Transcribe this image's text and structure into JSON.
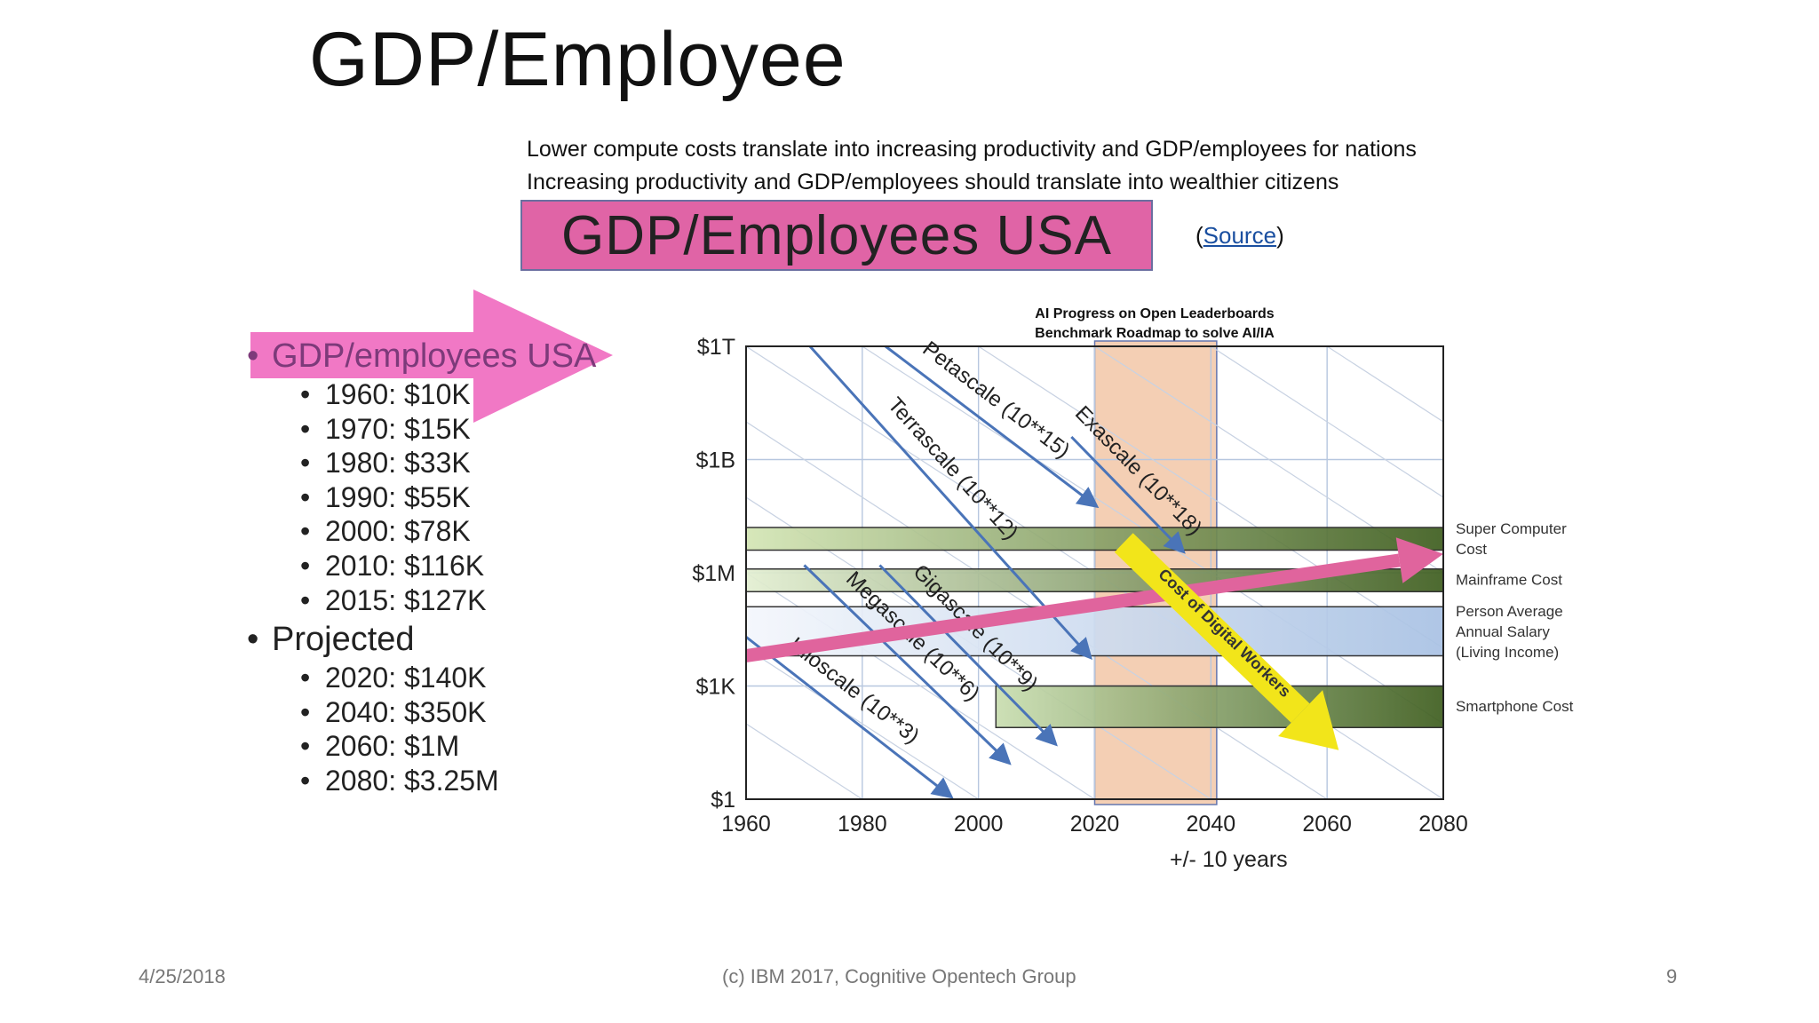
{
  "slide": {
    "title": "GDP/Employee",
    "subtitle_lines": [
      "Lower compute costs translate into increasing productivity and GDP/employees for nations",
      "Increasing productivity and GDP/employees should translate into wealthier citizens"
    ],
    "banner": "GDP/Employees USA",
    "source_open": "(",
    "source_link": "Source",
    "source_close": ")",
    "footer": {
      "date": "4/25/2018",
      "center": "(c) IBM 2017, Cognitive Opentech Group",
      "page": "9"
    }
  },
  "left_list": {
    "heading": "GDP/employees USA",
    "items": [
      "1960: $10K",
      "1970: $15K",
      "1980: $33K",
      "1990: $55K",
      "2000: $78K",
      "2010: $116K",
      "2015: $127K"
    ],
    "projected_heading": "Projected",
    "projected_items": [
      "2020: $140K",
      "2040: $350K",
      "2060:  $1M",
      "2080: $3.25M"
    ]
  },
  "chart_data": {
    "type": "line",
    "title_lines": [
      "AI Progress on Open Leaderboards",
      "Benchmark Roadmap to solve AI/IA"
    ],
    "xlabel": "+/- 10 years",
    "x_ticks": [
      "1960",
      "1980",
      "2000",
      "2020",
      "2040",
      "2060",
      "2080"
    ],
    "y_ticks": [
      "$1",
      "$1K",
      "$1M",
      "$1B",
      "$1T"
    ],
    "xlim": [
      1960,
      2080
    ],
    "ylim_log10": [
      0,
      12
    ],
    "highlight_range": [
      2020,
      2041
    ],
    "bands": [
      {
        "name": "Super Computer Cost",
        "label_lines": [
          "Super Computer",
          "Cost"
        ],
        "x": [
          1960,
          2080
        ],
        "y_log10": [
          6.6,
          7.2
        ],
        "color_from": "#d4e6b5",
        "color_to": "#3f5e1f"
      },
      {
        "name": "Mainframe Cost",
        "label_lines": [
          "Mainframe Cost"
        ],
        "x": [
          1960,
          2080
        ],
        "y_log10": [
          5.5,
          6.1
        ],
        "color_from": "#e3efd2",
        "color_to": "#3f5e1f"
      },
      {
        "name": "Person Average Annual Salary (Living Income)",
        "label_lines": [
          "Person Average",
          "Annual Salary",
          "(Living Income)"
        ],
        "x": [
          1960,
          2080
        ],
        "y_log10": [
          3.8,
          5.1
        ],
        "color_from": "#f4f7fc",
        "color_to": "#a9c2e4"
      },
      {
        "name": "Smartphone Cost",
        "label_lines": [
          "Smartphone Cost"
        ],
        "x": [
          2003,
          2080
        ],
        "y_log10": [
          1.9,
          3.0
        ],
        "color_from": "#c9deb0",
        "color_to": "#3f5e1f"
      }
    ],
    "scale_lines": [
      {
        "name": "Kiloscale (10**3)",
        "x1": 1960,
        "y1": 4.3,
        "x2": 1995,
        "y2": 0.1
      },
      {
        "name": "Megascale (10**6)",
        "x1": 1970,
        "y1": 6.2,
        "x2": 2005,
        "y2": 1.0
      },
      {
        "name": "Gigascale (10**9)",
        "x1": 1983,
        "y1": 6.2,
        "x2": 2013,
        "y2": 1.5
      },
      {
        "name": "Terrascale (10**12)",
        "x1": 1971,
        "y1": 12,
        "x2": 2019,
        "y2": 3.8
      },
      {
        "name": "Petascale (10**15)",
        "x1": 1984,
        "y1": 12,
        "x2": 2020,
        "y2": 7.8
      },
      {
        "name": "Exascale (10**18)",
        "x1": 2016,
        "y1": 9.6,
        "x2": 2035,
        "y2": 6.6
      }
    ],
    "gdp_arrow": {
      "from": [
        1960,
        3.8
      ],
      "to": [
        2080,
        6.5
      ],
      "color": "#e0649d"
    },
    "digital_workers_arrow": {
      "label": "Cost of Digital Workers",
      "from": [
        2025,
        6.8
      ],
      "to": [
        2062,
        1.3
      ],
      "color": "#f2e51a"
    }
  },
  "colors": {
    "banner_pink": "#e064a6",
    "arrow_pink": "#f06dc0",
    "link": "#1a4fa0",
    "highlight": "#f3c7a8"
  }
}
